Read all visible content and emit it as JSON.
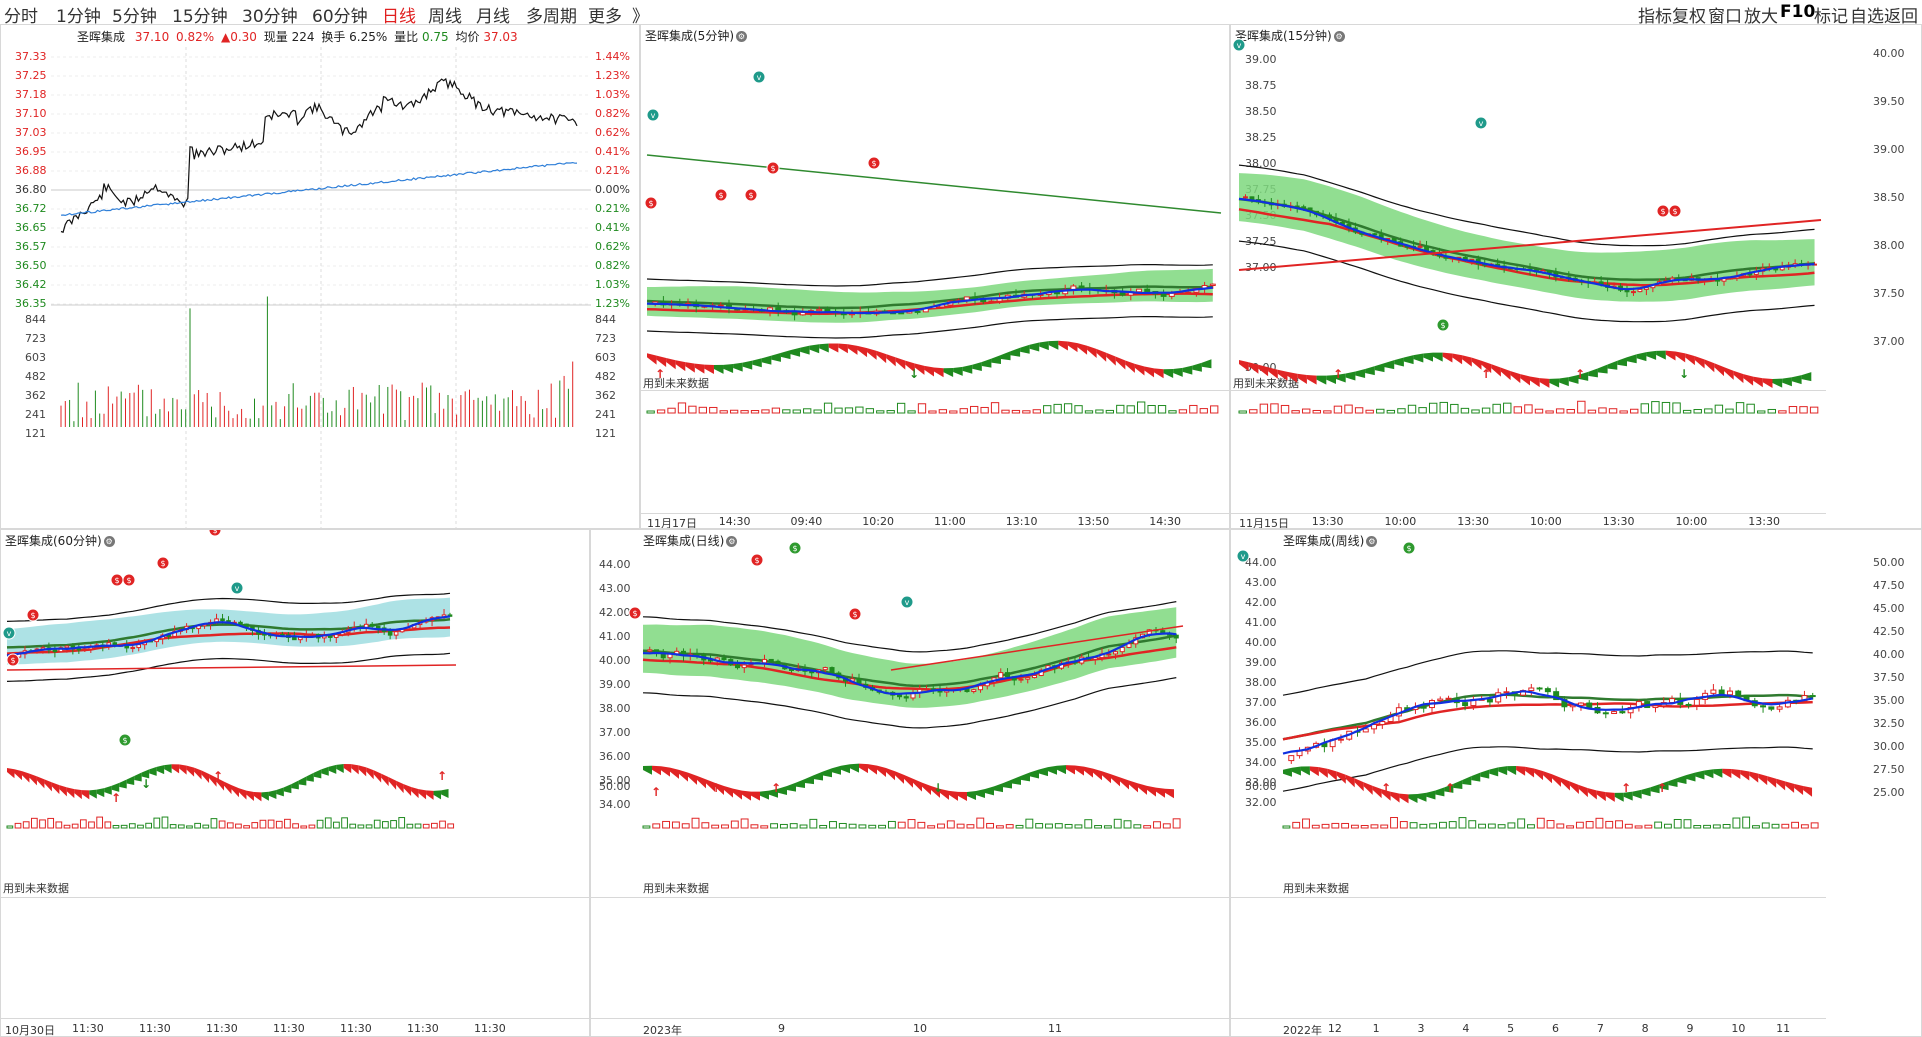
{
  "toolbar": {
    "periods": [
      "分时",
      "1分钟",
      "5分钟",
      "15分钟",
      "30分钟",
      "60分钟",
      "日线",
      "周线",
      "月线",
      "多周期",
      "更多",
      "》"
    ],
    "active": "日线",
    "right_tools": [
      "指标",
      "复权",
      "窗口",
      "放大",
      "F10",
      "标记",
      "自选",
      "返回"
    ]
  },
  "intraday": {
    "stock": "圣晖集成",
    "price": "37.10",
    "pct": "0.82%",
    "change": "▲0.30",
    "volume_label": "现量 224",
    "turnover": "换手 6.25%",
    "vol_ratio_label": "量比",
    "vol_ratio": "0.75",
    "avg_label": "均价",
    "avg": "37.03",
    "price_ticks": [
      "37.33",
      "37.25",
      "37.18",
      "37.10",
      "37.03",
      "36.95",
      "36.88",
      "36.80",
      "36.72",
      "36.65",
      "36.57",
      "36.50",
      "36.42",
      "36.35"
    ],
    "pct_ticks": [
      "1.44%",
      "1.23%",
      "1.03%",
      "0.82%",
      "0.62%",
      "0.41%",
      "0.21%",
      "0.00%",
      "0.21%",
      "0.41%",
      "0.62%",
      "0.82%",
      "1.03%",
      "1.23%"
    ],
    "vol_ticks": [
      "844",
      "723",
      "603",
      "482",
      "362",
      "241",
      "121"
    ]
  },
  "panels": {
    "p5": {
      "title": "圣晖集成(5分钟)",
      "note": "用到未来数据",
      "ind_tick": "",
      "dates": [
        "11月17日",
        "14:30",
        "09:40",
        "10:20",
        "11:00",
        "13:10",
        "13:50",
        "14:30"
      ]
    },
    "p15": {
      "title": "圣晖集成(15分钟)",
      "note": "用到未来数据",
      "ticks": [
        "40.00",
        "39.50",
        "39.00",
        "38.50",
        "38.00",
        "37.50",
        "37.00"
      ],
      "left_ticks": [
        "39.00",
        "38.75",
        "38.50",
        "38.25",
        "38.00",
        "37.75",
        "37.50",
        "37.25",
        "37.00"
      ],
      "ind_tick": "50.00",
      "dates": [
        "11月15日",
        "13:30",
        "10:00",
        "13:30",
        "10:00",
        "13:30",
        "10:00",
        "13:30"
      ]
    },
    "p60": {
      "title": "圣晖集成(60分钟)",
      "note": "用到未来数据",
      "dates": [
        "10月30日",
        "11:30",
        "11:30",
        "11:30",
        "11:30",
        "11:30",
        "11:30",
        "11:30"
      ]
    },
    "pday": {
      "title": "圣晖集成(日线)",
      "note": "用到未来数据",
      "ticks": [
        "44.00",
        "43.00",
        "42.00",
        "41.00",
        "40.00",
        "39.00",
        "38.00",
        "37.00",
        "36.00",
        "35.00",
        "34.00"
      ],
      "ind_tick": "50.00",
      "dates": [
        "2023年",
        "9",
        "10",
        "11"
      ]
    },
    "pweek": {
      "title": "圣晖集成(周线)",
      "note": "用到未来数据",
      "ticks": [
        "50.00",
        "47.50",
        "45.00",
        "42.50",
        "40.00",
        "37.50",
        "35.00",
        "32.50",
        "30.00",
        "27.50",
        "25.00"
      ],
      "left_ticks": [
        "44.00",
        "43.00",
        "42.00",
        "41.00",
        "40.00",
        "39.00",
        "38.00",
        "37.00",
        "36.00",
        "35.00",
        "34.00",
        "33.00",
        "32.00"
      ],
      "ind_tick": "50.00",
      "dates": [
        "2022年",
        "12",
        "1",
        "3",
        "4",
        "5",
        "6",
        "7",
        "8",
        "9",
        "10",
        "11"
      ]
    }
  },
  "colors": {
    "up": "#e02424",
    "down": "#1f8a1f",
    "ma_blue": "#1030e0",
    "band_green": "#7ed87e",
    "band_cyan": "#9fdde0",
    "avg_line": "#2f7fd8"
  }
}
